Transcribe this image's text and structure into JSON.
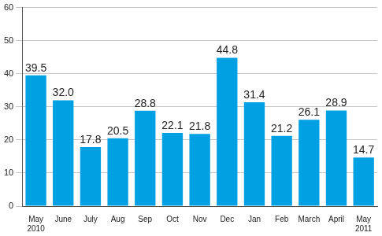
{
  "chart_data": {
    "type": "bar",
    "categories": [
      "May\n2010",
      "June",
      "July",
      "Aug",
      "Sep",
      "Oct",
      "Nov",
      "Dec",
      "Jan",
      "Feb",
      "March",
      "April",
      "May\n2011"
    ],
    "values": [
      39.5,
      32.0,
      17.8,
      20.5,
      28.8,
      22.1,
      21.8,
      44.8,
      31.4,
      21.2,
      26.1,
      28.9,
      14.7
    ],
    "value_labels": [
      "39.5",
      "32.0",
      "17.8",
      "20.5",
      "28.8",
      "22.1",
      "21.8",
      "44.8",
      "31.4",
      "21.2",
      "26.1",
      "28.9",
      "14.7"
    ],
    "color": "#00a0e3",
    "ylim": [
      0,
      60
    ],
    "yticks": [
      0,
      10,
      20,
      30,
      40,
      50,
      60
    ],
    "grid": true,
    "data_labels": true
  }
}
